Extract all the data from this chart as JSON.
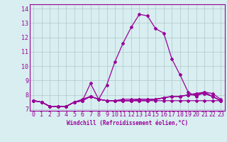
{
  "title": "",
  "xlabel": "Windchill (Refroidissement éolien,°C)",
  "hours": [
    0,
    1,
    2,
    3,
    4,
    5,
    6,
    7,
    8,
    9,
    10,
    11,
    12,
    13,
    14,
    15,
    16,
    17,
    18,
    19,
    20,
    21,
    22,
    23
  ],
  "line1": [
    7.6,
    7.5,
    7.2,
    7.2,
    7.2,
    7.5,
    7.6,
    8.8,
    7.7,
    7.6,
    7.6,
    7.6,
    7.6,
    7.6,
    7.6,
    7.6,
    7.6,
    7.6,
    7.6,
    7.6,
    7.6,
    7.6,
    7.6,
    7.6
  ],
  "line2": [
    7.6,
    7.5,
    7.2,
    7.2,
    7.2,
    7.5,
    7.7,
    7.9,
    7.7,
    8.7,
    10.3,
    11.6,
    12.7,
    13.6,
    13.5,
    12.6,
    12.3,
    10.5,
    9.4,
    8.2,
    7.9,
    8.2,
    7.9,
    7.6
  ],
  "line3": [
    7.6,
    7.5,
    7.2,
    7.2,
    7.2,
    7.5,
    7.6,
    7.9,
    7.7,
    7.6,
    7.6,
    7.7,
    7.7,
    7.7,
    7.7,
    7.7,
    7.8,
    7.9,
    7.9,
    8.0,
    8.1,
    8.1,
    7.9,
    7.6
  ],
  "line4": [
    7.6,
    7.5,
    7.2,
    7.2,
    7.2,
    7.5,
    7.6,
    7.9,
    7.7,
    7.6,
    7.6,
    7.6,
    7.6,
    7.7,
    7.7,
    7.7,
    7.8,
    7.9,
    7.9,
    8.0,
    8.1,
    8.2,
    8.1,
    7.7
  ],
  "line5": [
    7.6,
    7.5,
    7.2,
    7.2,
    7.2,
    7.5,
    7.6,
    7.9,
    7.7,
    7.6,
    7.6,
    7.6,
    7.6,
    7.6,
    7.6,
    7.7,
    7.8,
    7.9,
    7.9,
    8.0,
    8.0,
    8.1,
    7.9,
    7.6
  ],
  "line_color": "#990099",
  "bg_color": "#d8eef0",
  "grid_color": "#b0c8cc",
  "ylim": [
    6.9,
    14.3
  ],
  "yticks": [
    7,
    8,
    9,
    10,
    11,
    12,
    13,
    14
  ],
  "tick_label_fontsize": 6,
  "xlabel_fontsize": 5.5,
  "marker_size": 2.0,
  "linewidth": 0.9
}
